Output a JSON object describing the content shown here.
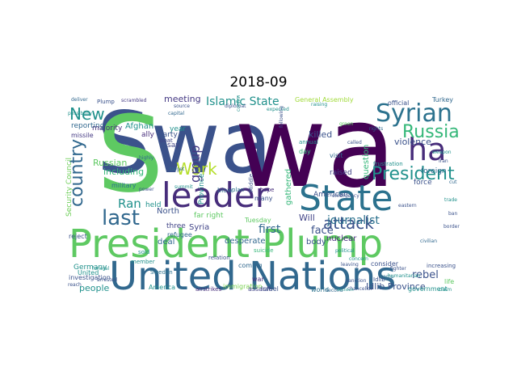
{
  "title": "2018-09",
  "word_cloud": {
    "words": [
      {
        "text": "Swa",
        "color": "#3b528b"
      },
      {
        "text": "wa",
        "color": "#440154"
      },
      {
        "text": "S",
        "color": "#5ec962"
      },
      {
        "text": "leader",
        "color": "#472d7b"
      },
      {
        "text": "State",
        "color": "#2c728e"
      },
      {
        "text": "President Plump",
        "color": "#5ec962"
      },
      {
        "text": "United Nations",
        "color": "#31688e"
      },
      {
        "text": "ha",
        "color": "#472c7a"
      },
      {
        "text": "Syrian",
        "color": "#2c728e"
      },
      {
        "text": "Russia",
        "color": "#35b779"
      },
      {
        "text": "President",
        "color": "#21918c"
      },
      {
        "text": "last",
        "color": "#31688e"
      },
      {
        "text": "attack",
        "color": "#3b528b"
      },
      {
        "text": "New",
        "color": "#21918c"
      },
      {
        "text": "country",
        "color": "#31688e"
      },
      {
        "text": "Work",
        "color": "#b5de2b"
      },
      {
        "text": "group",
        "color": "#443983"
      },
      {
        "text": "Islamic State",
        "color": "#21918c"
      },
      {
        "text": "rebel",
        "color": "#3b528b"
      },
      {
        "text": "Ran",
        "color": "#21918c"
      },
      {
        "text": "killed",
        "color": "#3b528b"
      },
      {
        "text": "face",
        "color": "#3b528b"
      },
      {
        "text": "first",
        "color": "#31688e"
      },
      {
        "text": "Will",
        "color": "#414487"
      },
      {
        "text": "Russian",
        "color": "#5ec962"
      },
      {
        "text": "including",
        "color": "#35b779"
      },
      {
        "text": "Afghan",
        "color": "#21918c"
      },
      {
        "text": "meeting",
        "color": "#443983"
      },
      {
        "text": "journalist",
        "color": "#2c728e"
      },
      {
        "text": "body",
        "color": "#3b528b"
      },
      {
        "text": "American",
        "color": "#3b528b"
      },
      {
        "text": "Security Council",
        "color": "#6ece58"
      },
      {
        "text": "General Assembly",
        "color": "#a0da39"
      },
      {
        "text": "people",
        "color": "#21918c"
      },
      {
        "text": "Idlib Province",
        "color": "#3b528b"
      },
      {
        "text": "nuclear",
        "color": "#472d7b"
      },
      {
        "text": "Syria",
        "color": "#414487"
      },
      {
        "text": "deal",
        "color": "#31688e"
      },
      {
        "text": "North",
        "color": "#3b528b"
      },
      {
        "text": "Germany",
        "color": "#21918c"
      },
      {
        "text": "investigation",
        "color": "#3b528b"
      },
      {
        "text": "Israel",
        "color": "#3b528b"
      },
      {
        "text": "world",
        "color": "#2c728e"
      },
      {
        "text": "war",
        "color": "#472d7b"
      },
      {
        "text": "violence",
        "color": "#3b528b"
      },
      {
        "text": "question",
        "color": "#35b779"
      },
      {
        "text": "raised",
        "color": "#414487"
      },
      {
        "text": "foreign",
        "color": "#31688e"
      },
      {
        "text": "force",
        "color": "#3b528b"
      },
      {
        "text": "gathered",
        "color": "#35b779"
      },
      {
        "text": "desperate",
        "color": "#31688e"
      },
      {
        "text": "Tuesday",
        "color": "#5ec962"
      },
      {
        "text": "year",
        "color": "#21918c"
      },
      {
        "text": "majority",
        "color": "#472d7b"
      },
      {
        "text": "reporting",
        "color": "#31688e"
      },
      {
        "text": "missile",
        "color": "#443983"
      },
      {
        "text": "ally",
        "color": "#472d7b"
      },
      {
        "text": "party",
        "color": "#3b528b"
      },
      {
        "text": "Province",
        "color": "#21918c"
      },
      {
        "text": "military",
        "color": "#2c728e"
      },
      {
        "text": "held",
        "color": "#21918c"
      },
      {
        "text": "three",
        "color": "#414487"
      },
      {
        "text": "far right",
        "color": "#5ec962"
      },
      {
        "text": "many",
        "color": "#3b528b"
      },
      {
        "text": "coming",
        "color": "#31688e"
      },
      {
        "text": "immigration",
        "color": "#7ad151"
      },
      {
        "text": "assault",
        "color": "#414487"
      },
      {
        "text": "America",
        "color": "#21918c"
      },
      {
        "text": "airstrikes",
        "color": "#472d7b"
      },
      {
        "text": "refugee",
        "color": "#31688e"
      },
      {
        "text": "reject",
        "color": "#3b528b"
      },
      {
        "text": "United",
        "color": "#21918c"
      },
      {
        "text": "official",
        "color": "#3b528b"
      },
      {
        "text": "Turkey",
        "color": "#31688e"
      },
      {
        "text": "annual",
        "color": "#21918c"
      },
      {
        "text": "consider",
        "color": "#3b528b"
      },
      {
        "text": "government",
        "color": "#21918c"
      },
      {
        "text": "life",
        "color": "#5ec962"
      },
      {
        "text": "say",
        "color": "#414487"
      },
      {
        "text": "Middle",
        "color": "#3b528b"
      },
      {
        "text": "blow",
        "color": "#31688e"
      },
      {
        "text": "plan",
        "color": "#2c728e"
      },
      {
        "text": "day",
        "color": "#35b779"
      },
      {
        "text": "visit",
        "color": "#31688e"
      },
      {
        "text": "Plump",
        "color": "#3b528b"
      },
      {
        "text": "diplomat",
        "color": "#3b528b"
      },
      {
        "text": "hope",
        "color": "#472d7b"
      },
      {
        "text": "member",
        "color": "#21918c"
      },
      {
        "text": "Sweden",
        "color": "#2c728e"
      },
      {
        "text": "frustration",
        "color": "#21918c"
      },
      {
        "text": "increasing",
        "color": "#3b528b"
      },
      {
        "text": "Idlib",
        "color": "#3b528b"
      },
      {
        "text": "suicide",
        "color": "#35b779"
      },
      {
        "text": "relation",
        "color": "#3b528b"
      },
      {
        "text": "boat",
        "color": "#414487"
      },
      {
        "text": "sold",
        "color": "#21918c"
      },
      {
        "text": "sanction",
        "color": "#3b528b"
      },
      {
        "text": "target",
        "color": "#31688e"
      },
      {
        "text": "fighter",
        "color": "#3b528b"
      },
      {
        "text": "possibility",
        "color": "#21918c"
      },
      {
        "text": "capital",
        "color": "#31688e"
      },
      {
        "text": "source",
        "color": "#3b528b"
      },
      {
        "text": "expected",
        "color": "#21918c"
      },
      {
        "text": "scrambled",
        "color": "#443983"
      },
      {
        "text": "deliver",
        "color": "#31688e"
      },
      {
        "text": "confirmed",
        "color": "#21918c"
      },
      {
        "text": "following",
        "color": "#3b528b"
      },
      {
        "text": "weapon",
        "color": "#21918c"
      },
      {
        "text": "Iran",
        "color": "#3b528b"
      },
      {
        "text": "camp",
        "color": "#2c728e"
      },
      {
        "text": "highly",
        "color": "#31688e"
      },
      {
        "text": "power",
        "color": "#3b528b"
      },
      {
        "text": "summit",
        "color": "#21918c"
      },
      {
        "text": "leaving",
        "color": "#3b528b"
      },
      {
        "text": "political",
        "color": "#21918c"
      },
      {
        "text": "called",
        "color": "#3b528b"
      },
      {
        "text": "raising",
        "color": "#21918c"
      },
      {
        "text": "green",
        "color": "#5ec962"
      },
      {
        "text": "rights",
        "color": "#31688e"
      },
      {
        "text": "emergency",
        "color": "#3b528b"
      },
      {
        "text": "concern",
        "color": "#21918c"
      },
      {
        "text": "eastern",
        "color": "#3b528b"
      },
      {
        "text": "humanitarian",
        "color": "#21918c"
      },
      {
        "text": "chancellor",
        "color": "#3b528b"
      },
      {
        "text": "second",
        "color": "#31688e"
      },
      {
        "text": "reach",
        "color": "#3b528b"
      },
      {
        "text": "funeral",
        "color": "#21918c"
      },
      {
        "text": "arrested",
        "color": "#3b528b"
      },
      {
        "text": "decision",
        "color": "#21918c"
      },
      {
        "text": "civilian",
        "color": "#31688e"
      },
      {
        "text": "border",
        "color": "#3b528b"
      },
      {
        "text": "trade",
        "color": "#21918c"
      },
      {
        "text": "ban",
        "color": "#3b528b"
      },
      {
        "text": "cut",
        "color": "#31688e"
      },
      {
        "text": "claim",
        "color": "#21918c"
      }
    ]
  }
}
